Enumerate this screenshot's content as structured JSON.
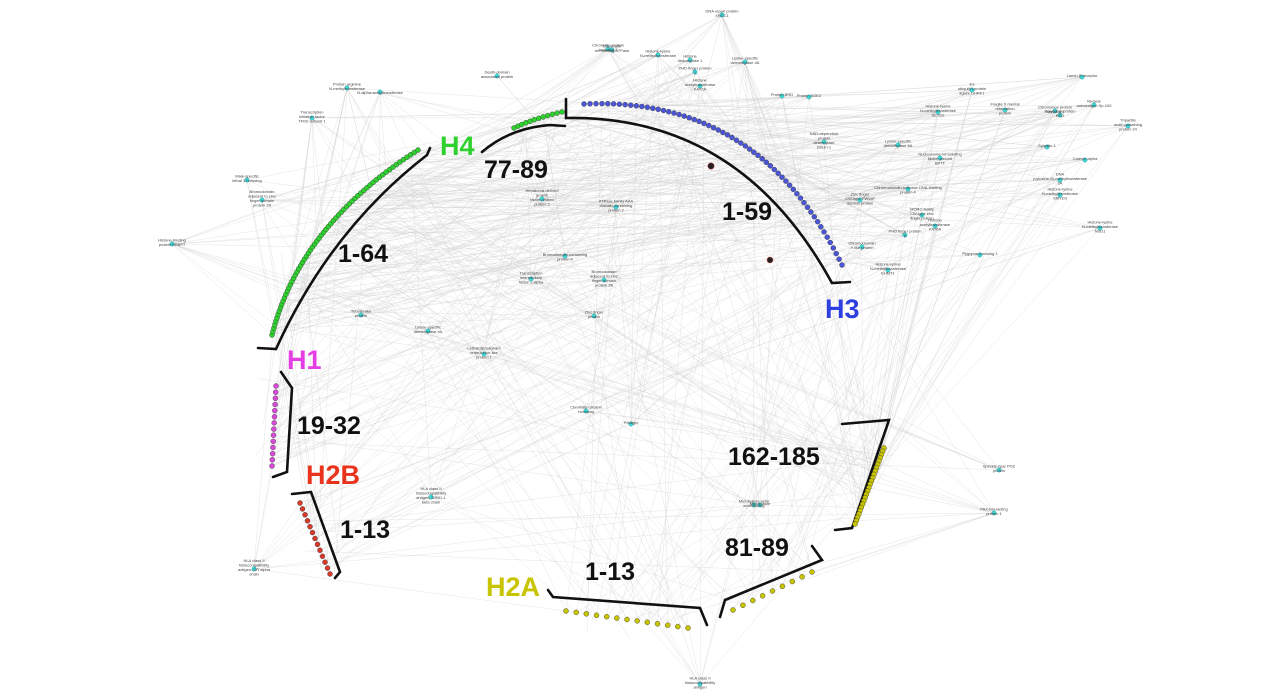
{
  "histones": {
    "H4": {
      "label": "H4",
      "range": "1-64",
      "color": "#2fd12f"
    },
    "H4b": {
      "range": "77-89"
    },
    "H3": {
      "label": "H3",
      "range": "1-59",
      "color": "#2d3fe0"
    },
    "H1": {
      "label": "H1",
      "range": "19-32",
      "color": "#e43ee4"
    },
    "H2B": {
      "label": "H2B",
      "range": "1-13",
      "color": "#e8341c"
    },
    "H2A": {
      "label": "H2A",
      "range1": "1-13",
      "range2": "81-89",
      "range3": "162-185",
      "color": "#c8c400"
    }
  },
  "node_colors": {
    "protein": "#3fd8d8",
    "h4": "#2fd12f",
    "h3": "#4a55d8",
    "h1": "#d84ad8",
    "h2b": "#d83a2a",
    "h2a": "#c8c400",
    "special": "#e83030"
  },
  "proteins": [
    {
      "label": "DNA repair protein XRCC1"
    },
    {
      "label": "Histone-lysine N-methyltransferase"
    },
    {
      "label": "Chromatin remodeling ATPase"
    },
    {
      "label": "Histone deacetylase 1"
    },
    {
      "label": "PHD finger protein 1"
    },
    {
      "label": "Lysine-specific demethylase 4A"
    },
    {
      "label": "Protein BRD"
    },
    {
      "label": "Bromodomain adjacent to zinc finger domain protein 2A"
    },
    {
      "label": "Transcription initiation factor TFIID subunit 1"
    },
    {
      "label": "Protein arginine N-methyltransferase"
    },
    {
      "label": "N-alpha-acetyltransferase"
    },
    {
      "label": "Death-domain associated protein"
    },
    {
      "label": "Male-specific lethal 3 homolog"
    },
    {
      "label": "Histone-binding protein RBBP7"
    },
    {
      "label": "Tubulin-like protein"
    },
    {
      "label": "Lysine-specific demethylase 4A"
    },
    {
      "label": "Lethal(3)malignant brain tumor-like protein 1"
    },
    {
      "label": "Chromatin protein homolog"
    },
    {
      "label": "Pelargin"
    },
    {
      "label": "Bromodomain-containing protein 4"
    },
    {
      "label": "Transcription intermediary factor 1-alpha"
    },
    {
      "label": "Bromodomain adjacent to zinc finger domain protein 2B"
    },
    {
      "label": "Hepatoma-derived growth factor-related protein 2"
    },
    {
      "label": "ATPase family AAA domain-containing protein 2"
    },
    {
      "label": "Zinc finger protein"
    },
    {
      "label": "NAD-dependent protein deacetylase sirtuin-1"
    },
    {
      "label": "Chromodomain-helicase-DNA-binding protein 4"
    },
    {
      "label": "Histone-lysine N-methyltransferase SETD2"
    },
    {
      "label": "E3 ubiquitin-protein ligase UHRF1"
    },
    {
      "label": "Nucleosome-remodeling factor subunit BPTF"
    },
    {
      "label": "Fragile X mental retardation protein"
    },
    {
      "label": "Zinc finger CW-type PWWP domain protein"
    },
    {
      "label": "Catenin alpha"
    },
    {
      "label": "Spindlin-1"
    },
    {
      "label": "Lysine-specific demethylase 5A"
    },
    {
      "label": "MORC family CW-type zinc finger protein"
    },
    {
      "label": "Histone acetyltransferase KAT6A"
    },
    {
      "label": "Chromobox protein homolog 5"
    },
    {
      "label": "Polycomb protein EED"
    },
    {
      "label": "DNA (cytosine-5)-methyltransferase 3A"
    },
    {
      "label": "Nuclear autoantigen Sp-100"
    },
    {
      "label": "Tripartite motif-containing protein 24"
    },
    {
      "label": "Histone-lysine N-methyltransferase NSD1"
    },
    {
      "label": "Histone-lysine N-methyltransferase SMYD3"
    },
    {
      "label": "Lamin-B receptor"
    },
    {
      "label": "Pygopus homolog 1"
    },
    {
      "label": "PHD finger protein 8"
    },
    {
      "label": "Chromodomain Y-like protein"
    },
    {
      "label": "Histone-lysine N-methyltransferase EHMT1"
    },
    {
      "label": "Microtubule-actin crosslinking"
    },
    {
      "label": "HLA class II histocompatibility antigen, DRB1-1 beta chain"
    },
    {
      "label": "HLA class II histocompatibility antigen, DR alpha chain"
    },
    {
      "label": "HLA class II histocompatibility antigen"
    },
    {
      "label": "Speckle-type POZ protein"
    },
    {
      "label": "PAX-interacting protein 1"
    },
    {
      "label": "Microtubule"
    },
    {
      "label": "Chromatin protein homolog 2"
    },
    {
      "label": "Histone acetyltransferase KAT2A"
    },
    {
      "label": "Protein SDE2"
    }
  ]
}
